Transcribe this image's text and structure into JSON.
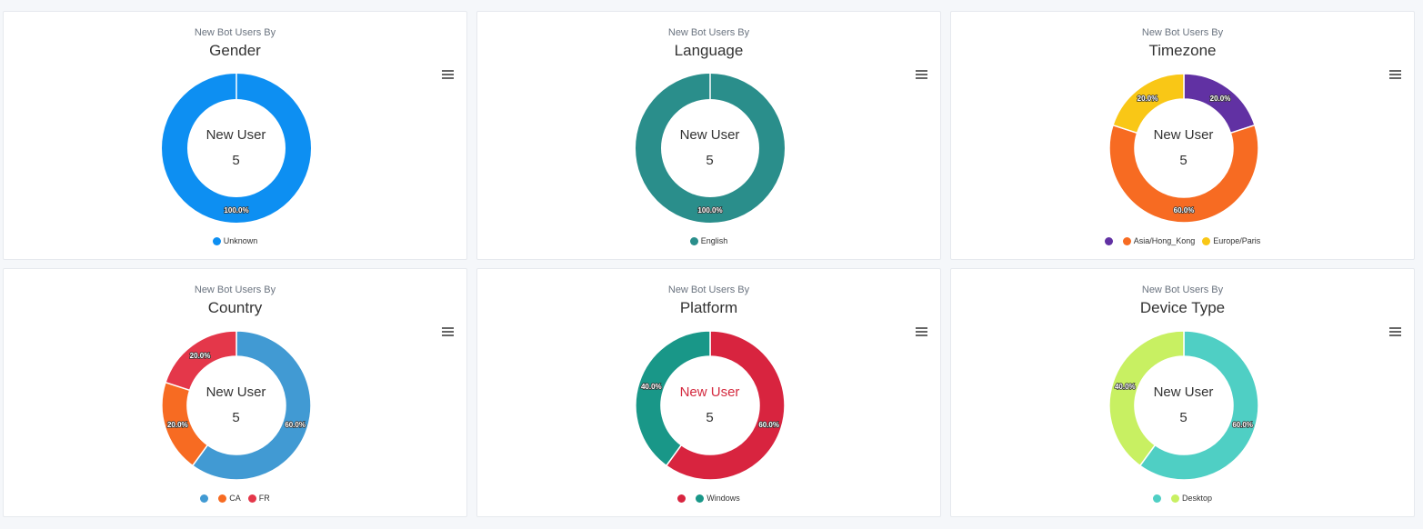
{
  "chart_data": [
    {
      "type": "pie",
      "subtitle": "New Bot Users By",
      "title": "Gender",
      "center_label": "New User",
      "center_value": "5",
      "slices": [
        {
          "name": "Unknown",
          "value": 100,
          "label": "100.0%",
          "color": "#0d8ff2"
        }
      ]
    },
    {
      "type": "pie",
      "subtitle": "New Bot Users By",
      "title": "Language",
      "center_label": "New User",
      "center_value": "5",
      "slices": [
        {
          "name": "English",
          "value": 100,
          "label": "100.0%",
          "color": "#2a8e8b"
        }
      ]
    },
    {
      "type": "pie",
      "subtitle": "New Bot Users By",
      "title": "Timezone",
      "center_label": "New User",
      "center_value": "5",
      "slices": [
        {
          "name": "",
          "value": 20,
          "label": "20.0%",
          "color": "#6131a3"
        },
        {
          "name": "Asia/Hong_Kong",
          "value": 60,
          "label": "60.0%",
          "color": "#f76b22"
        },
        {
          "name": "Europe/Paris",
          "value": 20,
          "label": "20.0%",
          "color": "#f9c716"
        }
      ]
    },
    {
      "type": "pie",
      "subtitle": "New Bot Users By",
      "title": "Country",
      "center_label": "New User",
      "center_value": "5",
      "slices": [
        {
          "name": "",
          "value": 60,
          "label": "60.0%",
          "color": "#419ad3"
        },
        {
          "name": "CA",
          "value": 20,
          "label": "20.0%",
          "color": "#f76b22"
        },
        {
          "name": "FR",
          "value": 20,
          "label": "20.0%",
          "color": "#e4374a"
        }
      ]
    },
    {
      "type": "pie",
      "subtitle": "New Bot Users By",
      "title": "Platform",
      "center_label": "New User",
      "center_value": "5",
      "center_label_color": "#d42a3f",
      "slices": [
        {
          "name": "",
          "value": 60,
          "label": "60.0%",
          "color": "#d8243f"
        },
        {
          "name": "Windows",
          "value": 40,
          "label": "40.0%",
          "color": "#199788"
        }
      ]
    },
    {
      "type": "pie",
      "subtitle": "New Bot Users By",
      "title": "Device Type",
      "center_label": "New User",
      "center_value": "5",
      "slices": [
        {
          "name": "",
          "value": 60,
          "label": "60.0%",
          "color": "#4fcfc4"
        },
        {
          "name": "Desktop",
          "value": 40,
          "label": "40.0%",
          "color": "#c8f062"
        }
      ]
    }
  ]
}
